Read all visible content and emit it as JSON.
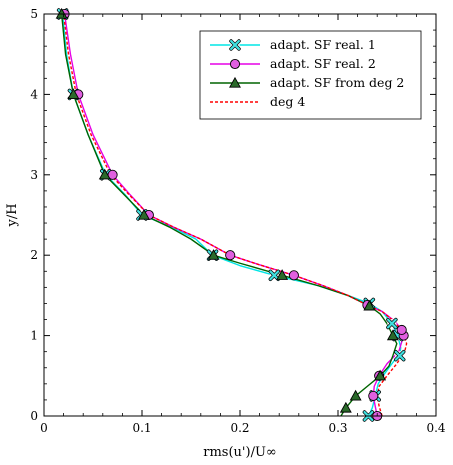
{
  "chart_data": {
    "type": "line",
    "xlabel": "rms(u')/U∞",
    "ylabel": "y/H",
    "xlim": [
      0,
      0.4
    ],
    "ylim": [
      0,
      5
    ],
    "xticks": [
      "0",
      "0.1",
      "0.2",
      "0.3",
      "0.4"
    ],
    "yticks": [
      "0",
      "1",
      "2",
      "3",
      "4",
      "5"
    ],
    "grid": false,
    "legend": {
      "placement": "top-right"
    },
    "series": [
      {
        "name": "adapt. SF real. 1",
        "color": "#00e5e5",
        "marker": "x-in-circle",
        "marker_fill": "#40e0e0",
        "linestyle": "solid",
        "x": [
          0.331,
          0.335,
          0.338,
          0.341,
          0.346,
          0.352,
          0.358,
          0.363,
          0.364,
          0.361,
          0.355,
          0.345,
          0.332,
          0.31,
          0.28,
          0.235,
          0.2,
          0.172,
          0.155,
          0.13,
          0.1,
          0.083,
          0.063,
          0.045,
          0.03,
          0.023,
          0.019
        ],
        "y": [
          0.0,
          0.1,
          0.25,
          0.4,
          0.5,
          0.6,
          0.7,
          0.75,
          0.85,
          1.0,
          1.15,
          1.3,
          1.4,
          1.5,
          1.62,
          1.75,
          1.87,
          2.0,
          2.2,
          2.35,
          2.5,
          2.75,
          3.0,
          3.5,
          4.0,
          4.5,
          5.0
        ],
        "markers_at": [
          0,
          2,
          7,
          9,
          10,
          12,
          15,
          17,
          20,
          22,
          24,
          26
        ]
      },
      {
        "name": "adapt. SF real. 2",
        "color": "#e600e6",
        "marker": "circle",
        "marker_fill": "#e060e0",
        "linestyle": "solid",
        "x": [
          0.34,
          0.338,
          0.336,
          0.337,
          0.342,
          0.35,
          0.362,
          0.367,
          0.365,
          0.358,
          0.345,
          0.33,
          0.31,
          0.285,
          0.255,
          0.22,
          0.19,
          0.16,
          0.132,
          0.107,
          0.088,
          0.07,
          0.05,
          0.035,
          0.027,
          0.021
        ],
        "y": [
          0.0,
          0.12,
          0.25,
          0.37,
          0.5,
          0.65,
          0.8,
          1.0,
          1.07,
          1.18,
          1.3,
          1.38,
          1.5,
          1.62,
          1.75,
          1.88,
          2.0,
          2.2,
          2.35,
          2.5,
          2.75,
          3.0,
          3.5,
          4.0,
          4.5,
          5.0
        ],
        "markers_at": [
          0,
          2,
          4,
          7,
          8,
          11,
          14,
          16,
          19,
          21,
          23,
          25
        ]
      },
      {
        "name": "adapt. SF from deg 2",
        "color": "#006400",
        "marker": "triangle",
        "marker_fill": "#2a6a2a",
        "linestyle": "solid",
        "x": [
          0.303,
          0.308,
          0.318,
          0.33,
          0.343,
          0.352,
          0.356,
          0.36,
          0.356,
          0.35,
          0.343,
          0.332,
          0.31,
          0.28,
          0.243,
          0.2,
          0.173,
          0.15,
          0.128,
          0.102,
          0.082,
          0.062,
          0.045,
          0.03,
          0.022,
          0.018
        ],
        "y": [
          0.0,
          0.1,
          0.25,
          0.37,
          0.5,
          0.62,
          0.75,
          0.9,
          1.0,
          1.15,
          1.27,
          1.37,
          1.5,
          1.62,
          1.75,
          1.9,
          2.0,
          2.2,
          2.35,
          2.5,
          2.75,
          3.0,
          3.5,
          4.0,
          4.5,
          5.0
        ],
        "markers_at": [
          1,
          2,
          4,
          8,
          11,
          14,
          16,
          19,
          21,
          23,
          25
        ]
      },
      {
        "name": "deg 4",
        "color": "#ff0000",
        "marker": "none",
        "linestyle": "dashed",
        "x": [
          0.345,
          0.342,
          0.34,
          0.342,
          0.35,
          0.36,
          0.368,
          0.37,
          0.366,
          0.357,
          0.345,
          0.33,
          0.31,
          0.285,
          0.255,
          0.22,
          0.19,
          0.16,
          0.132,
          0.107,
          0.087,
          0.068,
          0.048,
          0.033,
          0.025,
          0.02
        ],
        "y": [
          0.0,
          0.12,
          0.25,
          0.37,
          0.5,
          0.65,
          0.8,
          0.9,
          1.05,
          1.18,
          1.3,
          1.38,
          1.5,
          1.62,
          1.75,
          1.88,
          2.0,
          2.2,
          2.35,
          2.5,
          2.75,
          3.0,
          3.5,
          4.0,
          4.5,
          5.0
        ],
        "markers_at": []
      }
    ]
  }
}
